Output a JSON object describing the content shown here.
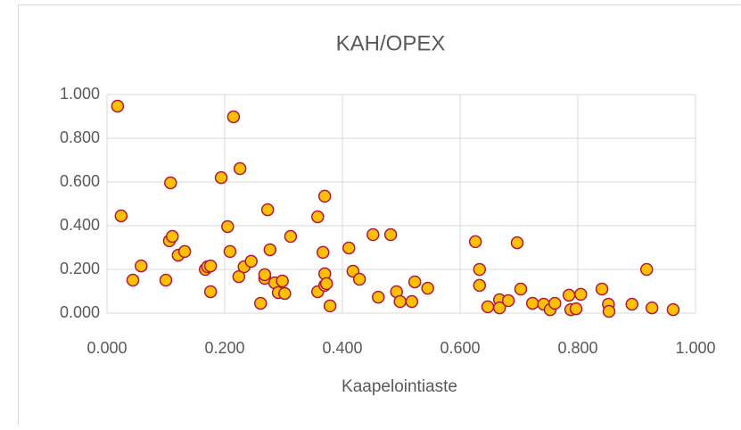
{
  "chart_data": {
    "type": "scatter",
    "title": "KAH/OPEX",
    "x_label": "Kaapelointiaste",
    "color": "#ffc000",
    "edge_color": "#b0173f",
    "grid": true,
    "xlim": [
      0,
      1
    ],
    "ylim": [
      0,
      1
    ],
    "xticks": [
      {
        "value": 0,
        "label": "0.000"
      },
      {
        "value": 0.2,
        "label": "0.200"
      },
      {
        "value": 0.4,
        "label": "0.400"
      },
      {
        "value": 0.6,
        "label": "0.600"
      },
      {
        "value": 0.8,
        "label": "0.800"
      },
      {
        "value": 1,
        "label": "1.000"
      }
    ],
    "yticks": [
      {
        "value": 0,
        "label": "0.000"
      },
      {
        "value": 0.2,
        "label": "0.200"
      },
      {
        "value": 0.4,
        "label": "0.400"
      },
      {
        "value": 0.6,
        "label": "0.600"
      },
      {
        "value": 0.8,
        "label": "0.800"
      },
      {
        "value": 1,
        "label": "1.000"
      }
    ],
    "x": [
      0.018,
      0.024,
      0.044,
      0.058,
      0.1,
      0.108,
      0.106,
      0.111,
      0.121,
      0.132,
      0.167,
      0.171,
      0.176,
      0.176,
      0.194,
      0.215,
      0.205,
      0.209,
      0.226,
      0.224,
      0.233,
      0.245,
      0.261,
      0.268,
      0.268,
      0.273,
      0.277,
      0.285,
      0.291,
      0.298,
      0.302,
      0.312,
      0.358,
      0.358,
      0.37,
      0.367,
      0.37,
      0.37,
      0.373,
      0.379,
      0.411,
      0.418,
      0.429,
      0.452,
      0.461,
      0.482,
      0.492,
      0.498,
      0.518,
      0.523,
      0.545,
      0.626,
      0.633,
      0.633,
      0.647,
      0.667,
      0.667,
      0.682,
      0.697,
      0.703,
      0.723,
      0.742,
      0.753,
      0.761,
      0.785,
      0.788,
      0.797,
      0.805,
      0.841,
      0.852,
      0.853,
      0.892,
      0.917,
      0.926,
      0.962
    ],
    "values": [
      0.947,
      0.445,
      0.151,
      0.216,
      0.151,
      0.596,
      0.331,
      0.351,
      0.265,
      0.282,
      0.2,
      0.212,
      0.216,
      0.098,
      0.62,
      0.898,
      0.396,
      0.282,
      0.661,
      0.167,
      0.212,
      0.237,
      0.045,
      0.159,
      0.176,
      0.473,
      0.29,
      0.139,
      0.094,
      0.147,
      0.09,
      0.351,
      0.098,
      0.441,
      0.535,
      0.278,
      0.127,
      0.18,
      0.135,
      0.033,
      0.298,
      0.192,
      0.155,
      0.359,
      0.073,
      0.359,
      0.098,
      0.053,
      0.053,
      0.143,
      0.114,
      0.327,
      0.2,
      0.127,
      0.029,
      0.061,
      0.024,
      0.057,
      0.322,
      0.11,
      0.045,
      0.041,
      0.016,
      0.045,
      0.082,
      0.016,
      0.02,
      0.086,
      0.11,
      0.041,
      0.008,
      0.041,
      0.2,
      0.024,
      0.016
    ]
  }
}
